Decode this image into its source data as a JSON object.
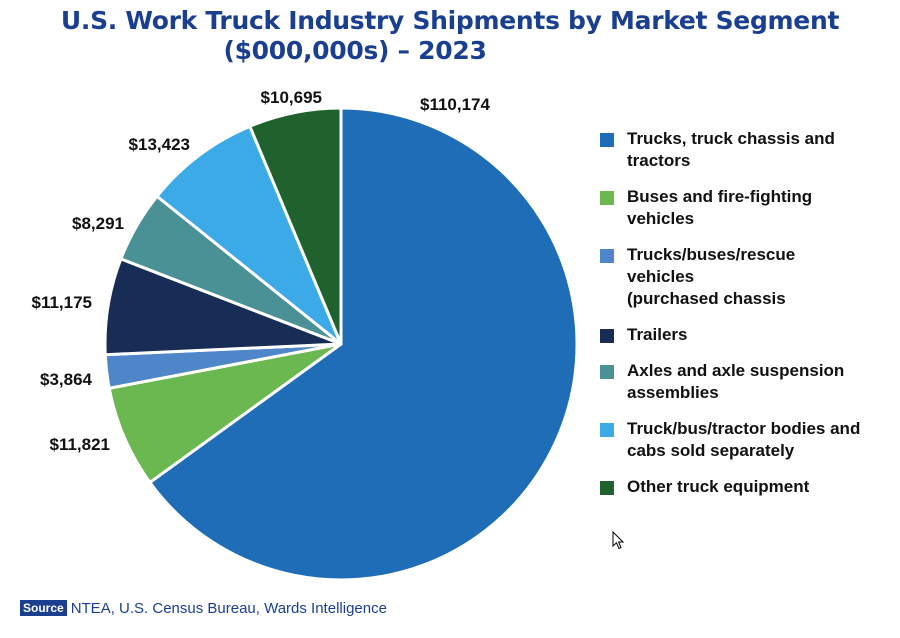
{
  "chart_data": {
    "type": "pie",
    "title_line1": "U.S. Work Truck Industry Shipments by Market Segment",
    "title_line2": "($000,000s) – 2023",
    "slices": [
      {
        "label": "Trucks, truck chassis and tractors",
        "value": 110174,
        "value_label": "$110,174",
        "color": "#1f6db7"
      },
      {
        "label": "Buses and fire-fighting vehicles",
        "value": 11821,
        "value_label": "$11,821",
        "color": "#6ab84f"
      },
      {
        "label": "Trucks/buses/rescue vehicles (purchased chassis",
        "value": 3864,
        "value_label": "$3,864",
        "color": "#4f86c9"
      },
      {
        "label": "Trailers",
        "value": 11175,
        "value_label": "$11,175",
        "color": "#172d55"
      },
      {
        "label": "Axles and axle suspension assemblies",
        "value": 8291,
        "value_label": "$8,291",
        "color": "#4a9196"
      },
      {
        "label": "Truck/bus/tractor bodies and cabs sold separately",
        "value": 13423,
        "value_label": "$13,423",
        "color": "#3daae8"
      },
      {
        "label": "Other truck equipment",
        "value": 10695,
        "value_label": "$10,695",
        "color": "#20622e"
      }
    ],
    "legend_position": "right"
  },
  "legend_lines": [
    [
      "Trucks, truck chassis and",
      "tractors"
    ],
    [
      "Buses and fire-fighting",
      "vehicles"
    ],
    [
      "Trucks/buses/rescue",
      "vehicles",
      "(purchased chassis"
    ],
    [
      "Trailers"
    ],
    [
      "Axles and axle suspension",
      "assemblies"
    ],
    [
      "Truck/bus/tractor bodies and",
      "cabs sold separately"
    ],
    [
      "Other truck equipment"
    ]
  ],
  "source": {
    "tag": "Source",
    "text": "NTEA, U.S. Census Bureau, Wards Intelligence"
  },
  "icons": {
    "cursor": "mouse-pointer-icon"
  }
}
